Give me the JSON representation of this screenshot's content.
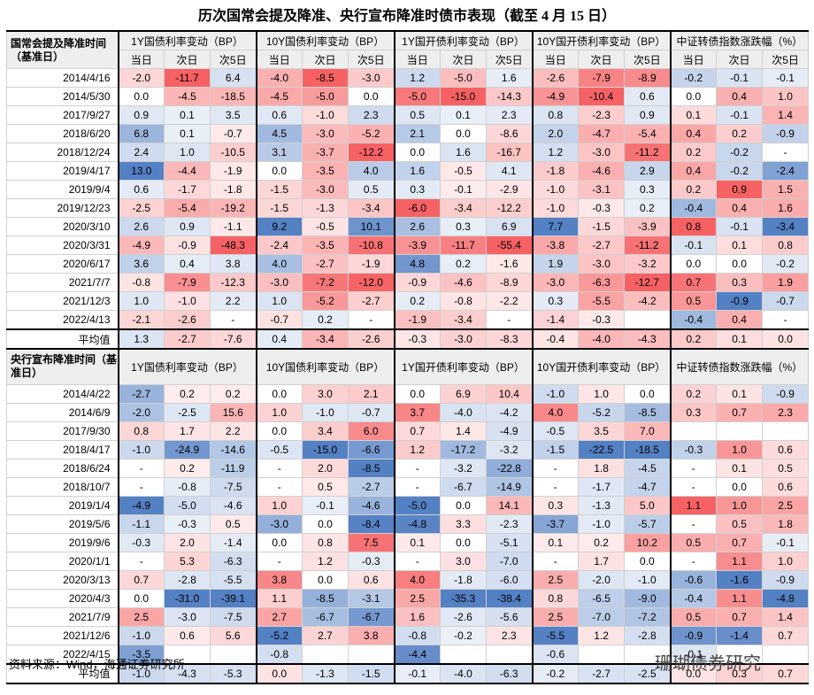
{
  "title": "历次国常会提及降准、央行宣布降准时债市表现（截至 4 月 15 日）",
  "sections": [
    {
      "header": "国常会提及降准时间（基准日）",
      "groups": [
        "1Y国债利率变动（BP）",
        "10Y国债利率变动（BP）",
        "1Y国开债利率变动（BP）",
        "10Y国开债利率变动（BP）",
        "中证转债指数涨跌幅（%）"
      ],
      "subheaders": [
        "当日",
        "次日",
        "次5日"
      ],
      "positive_colors": [
        "blue",
        "blue",
        "blue",
        "blue",
        "red"
      ],
      "rows": [
        {
          "label": "2014/4/16",
          "cells": [
            "-2.0",
            "-11.7",
            "6.4",
            "-4.0",
            "-8.5",
            "-3.0",
            "1.2",
            "-5.0",
            "1.6",
            "-2.6",
            "-7.9",
            "-8.9",
            "-0.2",
            "-0.1",
            "-0.1"
          ]
        },
        {
          "label": "2014/5/30",
          "cells": [
            "0.0",
            "-4.5",
            "-18.5",
            "-4.5",
            "-5.0",
            "0.0",
            "-5.0",
            "-15.0",
            "-14.3",
            "-4.9",
            "-10.4",
            "0.6",
            "0.0",
            "0.4",
            "1.0"
          ]
        },
        {
          "label": "2017/9/27",
          "cells": [
            "0.9",
            "0.1",
            "3.5",
            "0.6",
            "-1.0",
            "2.3",
            "0.5",
            "0.1",
            "2.3",
            "0.8",
            "-2.3",
            "0.9",
            "0.1",
            "-0.1",
            "1.4"
          ]
        },
        {
          "label": "2018/6/20",
          "cells": [
            "6.8",
            "0.1",
            "-0.7",
            "4.5",
            "-3.0",
            "-5.2",
            "2.1",
            "0.0",
            "-8.6",
            "2.0",
            "-4.7",
            "-5.4",
            "0.4",
            "0.2",
            "-0.9"
          ]
        },
        {
          "label": "2018/12/24",
          "cells": [
            "2.4",
            "1.0",
            "-10.5",
            "3.1",
            "-3.7",
            "-12.2",
            "0.0",
            "1.6",
            "-16.7",
            "1.2",
            "-3.0",
            "-11.2",
            "0.2",
            "-0.2",
            "-"
          ]
        },
        {
          "label": "2019/4/17",
          "cells": [
            "13.0",
            "-4.4",
            "-1.9",
            "0.0",
            "-3.5",
            "4.0",
            "1.6",
            "-0.5",
            "4.1",
            "-1.8",
            "-4.6",
            "2.9",
            "0.4",
            "-0.2",
            "-2.4"
          ]
        },
        {
          "label": "2019/9/4",
          "cells": [
            "0.6",
            "-1.7",
            "-1.8",
            "-1.5",
            "-3.0",
            "0.5",
            "0.3",
            "-0.1",
            "-2.9",
            "-1.0",
            "-3.1",
            "0.3",
            "0.2",
            "0.9",
            "1.5"
          ]
        },
        {
          "label": "2019/12/23",
          "cells": [
            "-2.5",
            "-5.4",
            "-19.2",
            "-1.5",
            "-1.3",
            "-3.4",
            "-6.0",
            "-3.4",
            "-12.2",
            "-1.0",
            "-0.3",
            "0.2",
            "-0.4",
            "0.4",
            "1.6"
          ]
        },
        {
          "label": "2020/3/10",
          "cells": [
            "2.6",
            "0.9",
            "-1.1",
            "9.2",
            "-0.5",
            "10.1",
            "2.6",
            "0.3",
            "6.9",
            "7.7",
            "-1.5",
            "-3.9",
            "0.8",
            "-0.1",
            "-3.4"
          ]
        },
        {
          "label": "2020/3/31",
          "cells": [
            "-4.9",
            "-0.9",
            "-48.3",
            "-2.4",
            "-3.5",
            "-10.8",
            "-3.9",
            "-11.7",
            "-55.4",
            "-3.8",
            "-2.7",
            "-11.2",
            "-0.1",
            "0.1",
            "0.8"
          ]
        },
        {
          "label": "2020/6/17",
          "cells": [
            "3.6",
            "0.4",
            "3.8",
            "4.0",
            "-2.7",
            "-1.9",
            "4.8",
            "0.2",
            "-1.6",
            "1.9",
            "-3.0",
            "-3.2",
            "0.0",
            "0.0",
            "-0.2"
          ]
        },
        {
          "label": "2021/7/7",
          "cells": [
            "-0.8",
            "-7.9",
            "-12.3",
            "-3.0",
            "-7.2",
            "-12.0",
            "-0.9",
            "-4.6",
            "-8.9",
            "-3.0",
            "-6.3",
            "-12.7",
            "0.7",
            "0.3",
            "1.9"
          ]
        },
        {
          "label": "2021/12/3",
          "cells": [
            "1.0",
            "-1.0",
            "2.2",
            "1.0",
            "-5.2",
            "-2.7",
            "0.2",
            "-0.8",
            "-2.2",
            "0.3",
            "-5.5",
            "-4.2",
            "0.5",
            "-0.9",
            "-0.7"
          ]
        },
        {
          "label": "2022/4/13",
          "cells": [
            "-2.1",
            "-2.6",
            "-",
            "-0.7",
            "0.2",
            "-",
            "-1.9",
            "-3.4",
            "-",
            "-1.4",
            "-0.3",
            null,
            "-0.4",
            "0.4",
            "-"
          ]
        },
        {
          "label": "平均值",
          "cells": [
            "1.3",
            "-2.7",
            "-7.6",
            "0.4",
            "-3.4",
            "-2.6",
            "-0.3",
            "-3.0",
            "-8.3",
            "-0.4",
            "-4.0",
            "-4.3",
            "0.2",
            "0.1",
            "0.0"
          ]
        }
      ]
    },
    {
      "header": "央行宣布降准时间（基准日）",
      "groups": [
        "1Y国债利率变动（BP）",
        "10Y国债利率变动（BP）",
        "1Y国开债利率变动（BP）",
        "10Y国开债利率变动（BP）",
        "中证转债指数涨跌幅（%）"
      ],
      "positive_colors": [
        "red",
        "red",
        "red",
        "red",
        "red"
      ],
      "rows": [
        {
          "label": "2014/4/22",
          "cells": [
            "-2.7",
            "0.2",
            "0.2",
            "0.0",
            "3.0",
            "2.1",
            "0.0",
            "6.9",
            "10.4",
            "-1.0",
            "1.0",
            "0.0",
            "0.2",
            "0.1",
            "-0.9"
          ]
        },
        {
          "label": "2014/6/9",
          "cells": [
            "-2.0",
            "-2.5",
            "15.6",
            "1.0",
            "-1.0",
            "-0.7",
            "3.7",
            "-4.0",
            "-4.2",
            "4.0",
            "-5.2",
            "-8.5",
            "0.3",
            "0.7",
            "2.3"
          ]
        },
        {
          "label": "2017/9/30",
          "cells": [
            "0.8",
            "1.7",
            "2.2",
            "0.0",
            "3.4",
            "6.0",
            "0.7",
            "1.4",
            "-4.9",
            "-0.5",
            "3.5",
            "7.0",
            null,
            null,
            null
          ]
        },
        {
          "label": "2018/4/17",
          "cells": [
            "-1.0",
            "-24.9",
            "-14.6",
            "-0.5",
            "-15.0",
            "-6.6",
            "1.2",
            "-17.2",
            "-3.2",
            "-1.5",
            "-22.5",
            "-18.5",
            "-0.3",
            "1.0",
            "0.6"
          ]
        },
        {
          "label": "2018/6/24",
          "cells": [
            "-",
            "0.2",
            "-11.9",
            "-",
            "2.0",
            "-8.5",
            "-",
            "-3.2",
            "-22.8",
            "-",
            "1.8",
            "-4.5",
            "-",
            "0.1",
            "0.5"
          ]
        },
        {
          "label": "2018/10/7",
          "cells": [
            "-",
            "-0.8",
            "-7.5",
            "-",
            "0.5",
            "-2.7",
            "-",
            "-6.7",
            "-14.9",
            "-",
            "-1.7",
            "-4.7",
            "-",
            "0.0",
            "0.6"
          ]
        },
        {
          "label": "2019/1/4",
          "cells": [
            "-4.9",
            "-5.0",
            "-4.6",
            "1.0",
            "-0.1",
            "-4.6",
            "-5.0",
            "0.0",
            "14.1",
            "0.3",
            "-1.3",
            "5.0",
            "1.1",
            "1.0",
            "2.5"
          ]
        },
        {
          "label": "2019/5/6",
          "cells": [
            "-1.1",
            "-0.3",
            "0.5",
            "-3.0",
            "0.0",
            "-8.4",
            "-4.8",
            "3.3",
            "-2.3",
            "-3.7",
            "-1.0",
            "-5.7",
            "-",
            "0.5",
            "1.8"
          ]
        },
        {
          "label": "2019/9/6",
          "cells": [
            "-0.3",
            "2.0",
            "-1.4",
            "0.0",
            "0.8",
            "7.5",
            "0.1",
            "0.0",
            "-5.1",
            "0.1",
            "0.2",
            "10.2",
            "0.5",
            "0.7",
            "-0.1"
          ]
        },
        {
          "label": "2020/1/1",
          "cells": [
            "-",
            "5.3",
            "-6.3",
            "-",
            "1.2",
            "-0.3",
            "-",
            "3.0",
            "-7.0",
            "-",
            "1.7",
            "0.0",
            "-",
            "1.1",
            "1.0"
          ]
        },
        {
          "label": "2020/3/13",
          "cells": [
            "0.7",
            "-2.8",
            "-5.5",
            "3.8",
            "0.0",
            "0.6",
            "4.0",
            "-1.8",
            "-6.0",
            "2.5",
            "-2.0",
            "-1.0",
            "-0.6",
            "-1.6",
            "-0.9"
          ]
        },
        {
          "label": "2020/4/3",
          "cells": [
            "0.0",
            "-31.0",
            "-39.1",
            "1.1",
            "-8.5",
            "-3.1",
            "2.5",
            "-35.3",
            "-38.4",
            "0.8",
            "-6.5",
            "-9.0",
            "-0.4",
            "1.1",
            "-4.8"
          ]
        },
        {
          "label": "2021/7/9",
          "cells": [
            "2.5",
            "-3.0",
            "-7.5",
            "2.7",
            "-6.7",
            "-6.7",
            "1.6",
            "-2.6",
            "-5.6",
            "2.5",
            "-7.0",
            "-7.2",
            "0.5",
            "0.7",
            "1.4"
          ]
        },
        {
          "label": "2021/12/6",
          "cells": [
            "-1.0",
            "0.6",
            "5.6",
            "-5.2",
            "2.7",
            "3.8",
            "-0.8",
            "-0.2",
            "2.3",
            "-5.5",
            "1.2",
            "-2.8",
            "-0.9",
            "-1.4",
            "0.7"
          ]
        },
        {
          "label": "2022/4/15",
          "cells": [
            "-3.5",
            null,
            null,
            "-0.8",
            null,
            null,
            "-4.4",
            null,
            null,
            "-0.6",
            null,
            null,
            "-0.1",
            null,
            null
          ]
        },
        {
          "label": "平均值",
          "cells": [
            "-1.0",
            "-4.3",
            "-5.3",
            "0.0",
            "-1.3",
            "-1.5",
            "-0.1",
            "-4.0",
            "-6.3",
            "-0.2",
            "-2.7",
            "-2.5",
            "0.0",
            "0.3",
            "0.7"
          ]
        }
      ]
    }
  ],
  "source": "资料来源：Wind，海通证券研究所",
  "watermark": "珊瑚债券研究"
}
